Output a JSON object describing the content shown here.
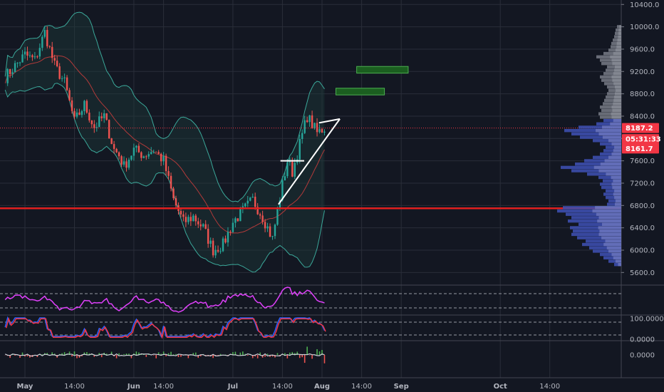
{
  "chart_data": {
    "type": "candlestick",
    "instrument": "BTC",
    "colors": {
      "background": "#131722",
      "grid": "#2a2e39",
      "up": "#26a69a",
      "down": "#ef5350",
      "bollinger": "#3ba89a",
      "bollinger_fill": "#1d3a3a",
      "ma": "#b23a3a",
      "support_line": "#e01f1f",
      "volume_profile": "#3f51b5",
      "volume_profile_light": "#7e87c9",
      "rsi": "#e040fb",
      "stoch_k": "#2962ff",
      "stoch_d": "#f23645",
      "macd": "#d1d4dc",
      "target_zone": "#1b5e20",
      "tag_red": "#f23645"
    },
    "price_axis": {
      "ticks": [
        "10400.0",
        "10000.0",
        "9600.0",
        "9200.0",
        "8800.0",
        "8400.0",
        "8000.0",
        "7600.0",
        "7200.0",
        "6800.0",
        "6400.0",
        "6000.0",
        "5600.0"
      ],
      "ylim": [
        5400,
        10480
      ]
    },
    "time_axis": {
      "labels": [
        {
          "text": "May",
          "bold": true,
          "day": 0
        },
        {
          "text": "14:00",
          "bold": false,
          "day": 5
        },
        {
          "text": "Jun",
          "bold": true,
          "day": 11
        },
        {
          "text": "14:00",
          "bold": false,
          "day": 14
        },
        {
          "text": "Jul",
          "bold": true,
          "day": 21
        },
        {
          "text": "14:00",
          "bold": false,
          "day": 26
        },
        {
          "text": "Aug",
          "bold": true,
          "day": 30
        },
        {
          "text": "14:00",
          "bold": false,
          "day": 34
        },
        {
          "text": "Sep",
          "bold": true,
          "day": 38
        },
        {
          "text": "Oct",
          "bold": true,
          "day": 48
        },
        {
          "text": "14:00",
          "bold": false,
          "day": 53
        }
      ]
    },
    "price_tags": [
      {
        "text": "8187.2",
        "price": 8187.2
      },
      {
        "text": "05:31:33",
        "price": 7990
      },
      {
        "text": "8161.7",
        "price": 7820
      }
    ],
    "horizontal_lines": [
      {
        "name": "support",
        "price": 6750
      },
      {
        "name": "last-price",
        "price": 8187.2,
        "dotted": true
      }
    ],
    "target_zones": [
      {
        "day_start": 33.5,
        "day_end": 38.7,
        "price_low": 9170,
        "price_high": 9290
      },
      {
        "day_start": 31.4,
        "day_end": 36.3,
        "price_low": 8780,
        "price_high": 8900
      }
    ],
    "trendlines": [
      {
        "from": [
          25.6,
          6820
        ],
        "to": [
          31.8,
          8350
        ]
      },
      {
        "from": [
          29.7,
          8280
        ],
        "to": [
          31.8,
          8350
        ]
      },
      {
        "from": [
          25.8,
          7600
        ],
        "to": [
          28.2,
          7600
        ]
      }
    ],
    "keypoints": [
      [
        -2,
        9100
      ],
      [
        0,
        9500
      ],
      [
        1,
        9400
      ],
      [
        2,
        9900
      ],
      [
        3,
        9300
      ],
      [
        4,
        9000
      ],
      [
        5,
        8300
      ],
      [
        6,
        8600
      ],
      [
        7,
        8200
      ],
      [
        8,
        8400
      ],
      [
        9,
        7800
      ],
      [
        9.5,
        7700
      ],
      [
        10,
        7500
      ],
      [
        11,
        7800
      ],
      [
        12,
        7700
      ],
      [
        13,
        7800
      ],
      [
        14,
        7600
      ],
      [
        15,
        6900
      ],
      [
        16,
        6500
      ],
      [
        17,
        6600
      ],
      [
        18,
        6400
      ],
      [
        19,
        6000
      ],
      [
        20,
        6100
      ],
      [
        21,
        6500
      ],
      [
        22,
        6700
      ],
      [
        23,
        6900
      ],
      [
        24,
        6600
      ],
      [
        25,
        6200
      ],
      [
        25.6,
        6820
      ],
      [
        26.5,
        7600
      ],
      [
        27,
        7400
      ],
      [
        28.5,
        8400
      ],
      [
        29.5,
        8100
      ],
      [
        30.3,
        8190
      ]
    ],
    "volume_profile": {
      "price_step": 60,
      "bins": [
        [
          5740,
          10
        ],
        [
          5800,
          18
        ],
        [
          5860,
          25
        ],
        [
          5920,
          30
        ],
        [
          5980,
          40
        ],
        [
          6040,
          45
        ],
        [
          6100,
          55
        ],
        [
          6160,
          50
        ],
        [
          6220,
          62
        ],
        [
          6280,
          70
        ],
        [
          6340,
          68
        ],
        [
          6400,
          72
        ],
        [
          6460,
          60
        ],
        [
          6520,
          75
        ],
        [
          6580,
          70
        ],
        [
          6640,
          78
        ],
        [
          6700,
          90
        ],
        [
          6760,
          82
        ],
        [
          6820,
          20
        ],
        [
          6880,
          18
        ],
        [
          6940,
          22
        ],
        [
          7000,
          25
        ],
        [
          7060,
          22
        ],
        [
          7120,
          28
        ],
        [
          7180,
          30
        ],
        [
          7240,
          26
        ],
        [
          7300,
          32
        ],
        [
          7360,
          48
        ],
        [
          7420,
          70
        ],
        [
          7480,
          85
        ],
        [
          7540,
          65
        ],
        [
          7600,
          52
        ],
        [
          7660,
          40
        ],
        [
          7720,
          30
        ],
        [
          7780,
          25
        ],
        [
          7840,
          22
        ],
        [
          7900,
          30
        ],
        [
          7960,
          40
        ],
        [
          8020,
          58
        ],
        [
          8080,
          70
        ],
        [
          8140,
          80
        ],
        [
          8200,
          60
        ],
        [
          8260,
          35
        ],
        [
          8320,
          25
        ],
        [
          8380,
          30
        ],
        [
          8440,
          32
        ],
        [
          8500,
          28
        ],
        [
          8560,
          30
        ],
        [
          8620,
          26
        ],
        [
          8680,
          24
        ],
        [
          8740,
          22
        ],
        [
          8800,
          20
        ],
        [
          8860,
          18
        ],
        [
          8920,
          20
        ],
        [
          8980,
          24
        ],
        [
          9040,
          28
        ],
        [
          9100,
          30
        ],
        [
          9160,
          25
        ],
        [
          9220,
          22
        ],
        [
          9280,
          20
        ],
        [
          9340,
          28
        ],
        [
          9400,
          30
        ],
        [
          9460,
          35
        ],
        [
          9520,
          25
        ],
        [
          9580,
          18
        ],
        [
          9640,
          15
        ],
        [
          9700,
          14
        ],
        [
          9760,
          12
        ],
        [
          9820,
          10
        ],
        [
          9880,
          9
        ],
        [
          9940,
          8
        ],
        [
          10000,
          6
        ]
      ]
    },
    "rsi_panel": {
      "top_ref": 65,
      "bottom_ref": 32
    },
    "stoch_panel": {
      "ticks": [
        "100.0000",
        "0.0000"
      ]
    },
    "macd_panel": {
      "ticks": [
        "0.0000"
      ]
    }
  }
}
